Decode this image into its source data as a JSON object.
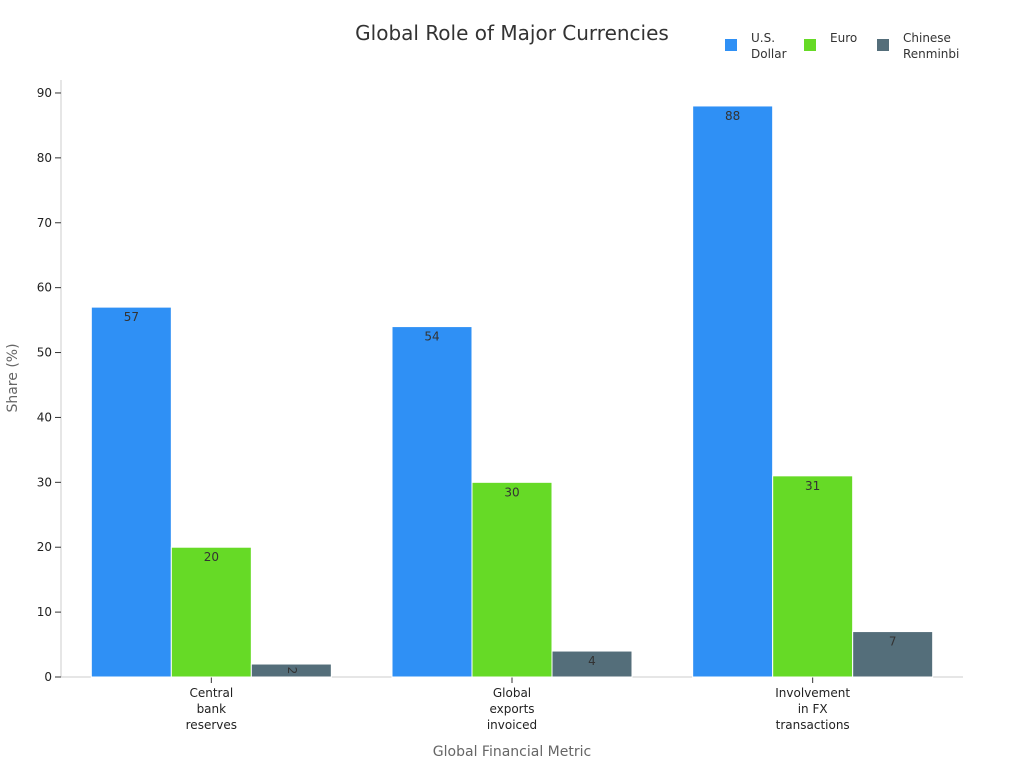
{
  "chart_data": {
    "type": "bar",
    "title": "Global Role of Major Currencies",
    "xlabel": "Global Financial Metric",
    "ylabel": "Share (%)",
    "categories": [
      [
        "Central",
        "bank",
        "reserves"
      ],
      [
        "Global",
        "exports",
        "invoiced"
      ],
      [
        "Involvement",
        "in FX",
        "transactions"
      ]
    ],
    "series": [
      {
        "name": [
          "U.S.",
          "Dollar"
        ],
        "values": [
          57,
          54,
          88
        ],
        "color": "#2F90F5"
      },
      {
        "name": [
          "Euro"
        ],
        "values": [
          20,
          30,
          31
        ],
        "color": "#66DA26"
      },
      {
        "name": [
          "Chinese",
          "Renminbi"
        ],
        "values": [
          2,
          4,
          7
        ],
        "color": "#546E7A"
      }
    ],
    "ylim": [
      0,
      92
    ],
    "yticks": [
      0,
      10,
      20,
      30,
      40,
      50,
      60,
      70,
      80,
      90
    ],
    "grid": false,
    "legend_position": "top-right"
  }
}
